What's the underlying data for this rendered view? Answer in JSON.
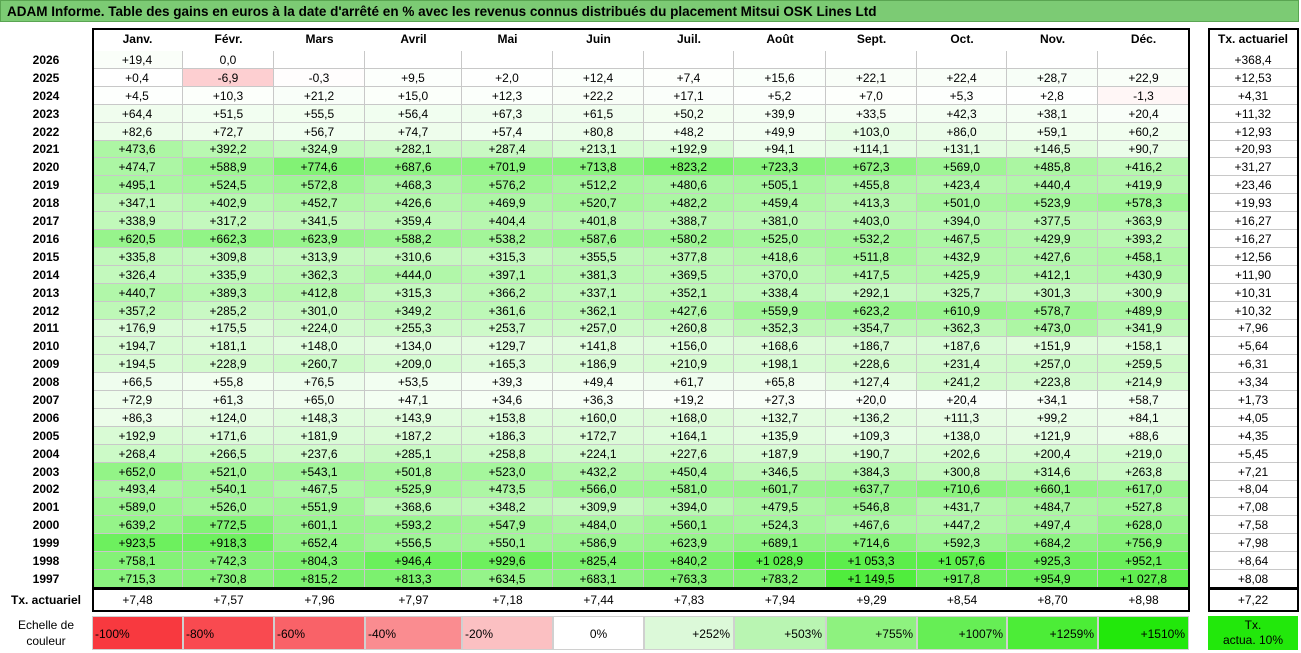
{
  "title": "ADAM Informe. Table des gains en euros à la date d'arrêté en % avec les revenus connus distribués du placement Mitsui OSK Lines Ltd",
  "months": [
    "Janv.",
    "Févr.",
    "Mars",
    "Avril",
    "Mai",
    "Juin",
    "Juil.",
    "Août",
    "Sept.",
    "Oct.",
    "Nov.",
    "Déc."
  ],
  "rate_header": "Tx. actuariel",
  "rows": [
    {
      "year": "2026",
      "values": [
        "+19,4",
        "0,0",
        "",
        "",
        "",
        "",
        "",
        "",
        "",
        "",
        "",
        ""
      ],
      "rate": "+368,4"
    },
    {
      "year": "2025",
      "values": [
        "+0,4",
        "-6,9",
        "-0,3",
        "+9,5",
        "+2,0",
        "+12,4",
        "+7,4",
        "+15,6",
        "+22,1",
        "+22,4",
        "+28,7",
        "+22,9"
      ],
      "rate": "+12,53"
    },
    {
      "year": "2024",
      "values": [
        "+4,5",
        "+10,3",
        "+21,2",
        "+15,0",
        "+12,3",
        "+22,2",
        "+17,1",
        "+5,2",
        "+7,0",
        "+5,3",
        "+2,8",
        "-1,3"
      ],
      "rate": "+4,31"
    },
    {
      "year": "2023",
      "values": [
        "+64,4",
        "+51,5",
        "+55,5",
        "+56,4",
        "+67,3",
        "+61,5",
        "+50,2",
        "+39,9",
        "+33,5",
        "+42,3",
        "+38,1",
        "+20,4"
      ],
      "rate": "+11,32"
    },
    {
      "year": "2022",
      "values": [
        "+82,6",
        "+72,7",
        "+56,7",
        "+74,7",
        "+57,4",
        "+80,8",
        "+48,2",
        "+49,9",
        "+103,0",
        "+86,0",
        "+59,1",
        "+60,2"
      ],
      "rate": "+12,93"
    },
    {
      "year": "2021",
      "values": [
        "+473,6",
        "+392,2",
        "+324,9",
        "+282,1",
        "+287,4",
        "+213,1",
        "+192,9",
        "+94,1",
        "+114,1",
        "+131,1",
        "+146,5",
        "+90,7"
      ],
      "rate": "+20,93"
    },
    {
      "year": "2020",
      "values": [
        "+474,7",
        "+588,9",
        "+774,6",
        "+687,6",
        "+701,9",
        "+713,8",
        "+823,2",
        "+723,3",
        "+672,3",
        "+569,0",
        "+485,8",
        "+416,2"
      ],
      "rate": "+31,27"
    },
    {
      "year": "2019",
      "values": [
        "+495,1",
        "+524,5",
        "+572,8",
        "+468,3",
        "+576,2",
        "+512,2",
        "+480,6",
        "+505,1",
        "+455,8",
        "+423,4",
        "+440,4",
        "+419,9"
      ],
      "rate": "+23,46"
    },
    {
      "year": "2018",
      "values": [
        "+347,1",
        "+402,9",
        "+452,7",
        "+426,6",
        "+469,9",
        "+520,7",
        "+482,2",
        "+459,4",
        "+413,3",
        "+501,0",
        "+523,9",
        "+578,3"
      ],
      "rate": "+19,93"
    },
    {
      "year": "2017",
      "values": [
        "+338,9",
        "+317,2",
        "+341,5",
        "+359,4",
        "+404,4",
        "+401,8",
        "+388,7",
        "+381,0",
        "+403,0",
        "+394,0",
        "+377,5",
        "+363,9"
      ],
      "rate": "+16,27"
    },
    {
      "year": "2016",
      "values": [
        "+620,5",
        "+662,3",
        "+623,9",
        "+588,2",
        "+538,2",
        "+587,6",
        "+580,2",
        "+525,0",
        "+532,2",
        "+467,5",
        "+429,9",
        "+393,2"
      ],
      "rate": "+16,27"
    },
    {
      "year": "2015",
      "values": [
        "+335,8",
        "+309,8",
        "+313,9",
        "+310,6",
        "+315,3",
        "+355,5",
        "+377,8",
        "+418,6",
        "+511,8",
        "+432,9",
        "+427,6",
        "+458,1"
      ],
      "rate": "+12,56"
    },
    {
      "year": "2014",
      "values": [
        "+326,4",
        "+335,9",
        "+362,3",
        "+444,0",
        "+397,1",
        "+381,3",
        "+369,5",
        "+370,0",
        "+417,5",
        "+425,9",
        "+412,1",
        "+430,9"
      ],
      "rate": "+11,90"
    },
    {
      "year": "2013",
      "values": [
        "+440,7",
        "+389,3",
        "+412,8",
        "+315,3",
        "+366,2",
        "+337,1",
        "+352,1",
        "+338,4",
        "+292,1",
        "+325,7",
        "+301,3",
        "+300,9"
      ],
      "rate": "+10,31"
    },
    {
      "year": "2012",
      "values": [
        "+357,2",
        "+285,2",
        "+301,0",
        "+349,2",
        "+361,6",
        "+362,1",
        "+427,6",
        "+559,9",
        "+623,2",
        "+610,9",
        "+578,7",
        "+489,9"
      ],
      "rate": "+10,32"
    },
    {
      "year": "2011",
      "values": [
        "+176,9",
        "+175,5",
        "+224,0",
        "+255,3",
        "+253,7",
        "+257,0",
        "+260,8",
        "+352,3",
        "+354,7",
        "+362,3",
        "+473,0",
        "+341,9"
      ],
      "rate": "+7,96"
    },
    {
      "year": "2010",
      "values": [
        "+194,7",
        "+181,1",
        "+148,0",
        "+134,0",
        "+129,7",
        "+141,8",
        "+156,0",
        "+168,6",
        "+186,7",
        "+187,6",
        "+151,9",
        "+158,1"
      ],
      "rate": "+5,64"
    },
    {
      "year": "2009",
      "values": [
        "+194,5",
        "+228,9",
        "+260,7",
        "+209,0",
        "+165,3",
        "+186,9",
        "+210,9",
        "+198,1",
        "+228,6",
        "+231,4",
        "+257,0",
        "+259,5"
      ],
      "rate": "+6,31"
    },
    {
      "year": "2008",
      "values": [
        "+66,5",
        "+55,8",
        "+76,5",
        "+53,5",
        "+39,3",
        "+49,4",
        "+61,7",
        "+65,8",
        "+127,4",
        "+241,2",
        "+223,8",
        "+214,9"
      ],
      "rate": "+3,34"
    },
    {
      "year": "2007",
      "values": [
        "+72,9",
        "+61,3",
        "+65,0",
        "+47,1",
        "+34,6",
        "+36,3",
        "+19,2",
        "+27,3",
        "+20,0",
        "+20,4",
        "+34,1",
        "+58,7"
      ],
      "rate": "+1,73"
    },
    {
      "year": "2006",
      "values": [
        "+86,3",
        "+124,0",
        "+148,3",
        "+143,9",
        "+153,8",
        "+160,0",
        "+168,0",
        "+132,7",
        "+136,2",
        "+111,3",
        "+99,2",
        "+84,1"
      ],
      "rate": "+4,05"
    },
    {
      "year": "2005",
      "values": [
        "+192,9",
        "+171,6",
        "+181,9",
        "+187,2",
        "+186,3",
        "+172,7",
        "+164,1",
        "+135,9",
        "+109,3",
        "+138,0",
        "+121,9",
        "+88,6"
      ],
      "rate": "+4,35"
    },
    {
      "year": "2004",
      "values": [
        "+268,4",
        "+266,5",
        "+237,6",
        "+285,1",
        "+258,8",
        "+224,1",
        "+227,6",
        "+187,9",
        "+190,7",
        "+202,6",
        "+200,4",
        "+219,0"
      ],
      "rate": "+5,45"
    },
    {
      "year": "2003",
      "values": [
        "+652,0",
        "+521,0",
        "+543,1",
        "+501,8",
        "+523,0",
        "+432,2",
        "+450,4",
        "+346,5",
        "+384,3",
        "+300,8",
        "+314,6",
        "+263,8"
      ],
      "rate": "+7,21"
    },
    {
      "year": "2002",
      "values": [
        "+493,4",
        "+540,1",
        "+467,5",
        "+525,9",
        "+473,5",
        "+566,0",
        "+581,0",
        "+601,7",
        "+637,7",
        "+710,6",
        "+660,1",
        "+617,0"
      ],
      "rate": "+8,04"
    },
    {
      "year": "2001",
      "values": [
        "+589,0",
        "+526,0",
        "+551,9",
        "+368,6",
        "+348,2",
        "+309,9",
        "+394,0",
        "+479,5",
        "+546,8",
        "+431,7",
        "+484,7",
        "+527,8"
      ],
      "rate": "+7,08"
    },
    {
      "year": "2000",
      "values": [
        "+639,2",
        "+772,5",
        "+601,1",
        "+593,2",
        "+547,9",
        "+484,0",
        "+560,1",
        "+524,3",
        "+467,6",
        "+447,2",
        "+497,4",
        "+628,0"
      ],
      "rate": "+7,58"
    },
    {
      "year": "1999",
      "values": [
        "+923,5",
        "+918,3",
        "+652,4",
        "+556,5",
        "+550,1",
        "+586,9",
        "+623,9",
        "+689,1",
        "+714,6",
        "+592,3",
        "+684,2",
        "+756,9"
      ],
      "rate": "+7,98"
    },
    {
      "year": "1998",
      "values": [
        "+758,1",
        "+742,3",
        "+804,3",
        "+946,4",
        "+929,6",
        "+825,4",
        "+840,2",
        "+1 028,9",
        "+1 053,3",
        "+1 057,6",
        "+925,3",
        "+952,1"
      ],
      "rate": "+8,64"
    },
    {
      "year": "1997",
      "values": [
        "+715,3",
        "+730,8",
        "+815,2",
        "+813,3",
        "+634,5",
        "+683,1",
        "+763,3",
        "+783,2",
        "+1 149,5",
        "+917,8",
        "+954,9",
        "+1 027,8"
      ],
      "rate": "+8,08"
    }
  ],
  "footer": {
    "label": "Tx. actuariel",
    "values": [
      "+7,48",
      "+7,57",
      "+7,96",
      "+7,97",
      "+7,18",
      "+7,44",
      "+7,83",
      "+7,94",
      "+9,29",
      "+8,54",
      "+8,70",
      "+8,98"
    ],
    "rate": "+7,22"
  },
  "legend": {
    "label_line1": "Echelle de",
    "label_line2": "couleur",
    "items": [
      {
        "label": "-100%",
        "color": "#f8393f"
      },
      {
        "label": "-80%",
        "color": "#f94a50"
      },
      {
        "label": "-60%",
        "color": "#f96268"
      },
      {
        "label": "-40%",
        "color": "#fa8c90"
      },
      {
        "label": "-20%",
        "color": "#fbc0c2"
      },
      {
        "label": "0%",
        "color": "#ffffff"
      },
      {
        "label": "+252%",
        "color": "#dcf9d9"
      },
      {
        "label": "+503%",
        "color": "#b9f5b2"
      },
      {
        "label": "+755%",
        "color": "#8ef27f"
      },
      {
        "label": "+1007%",
        "color": "#66ee55"
      },
      {
        "label": "+1259%",
        "color": "#4ced37"
      },
      {
        "label": "+1510%",
        "color": "#22e80b"
      }
    ],
    "rate_label_line1": "Tx.",
    "rate_label_line2": "actua. 10%",
    "rate_color": "#22e80b"
  }
}
